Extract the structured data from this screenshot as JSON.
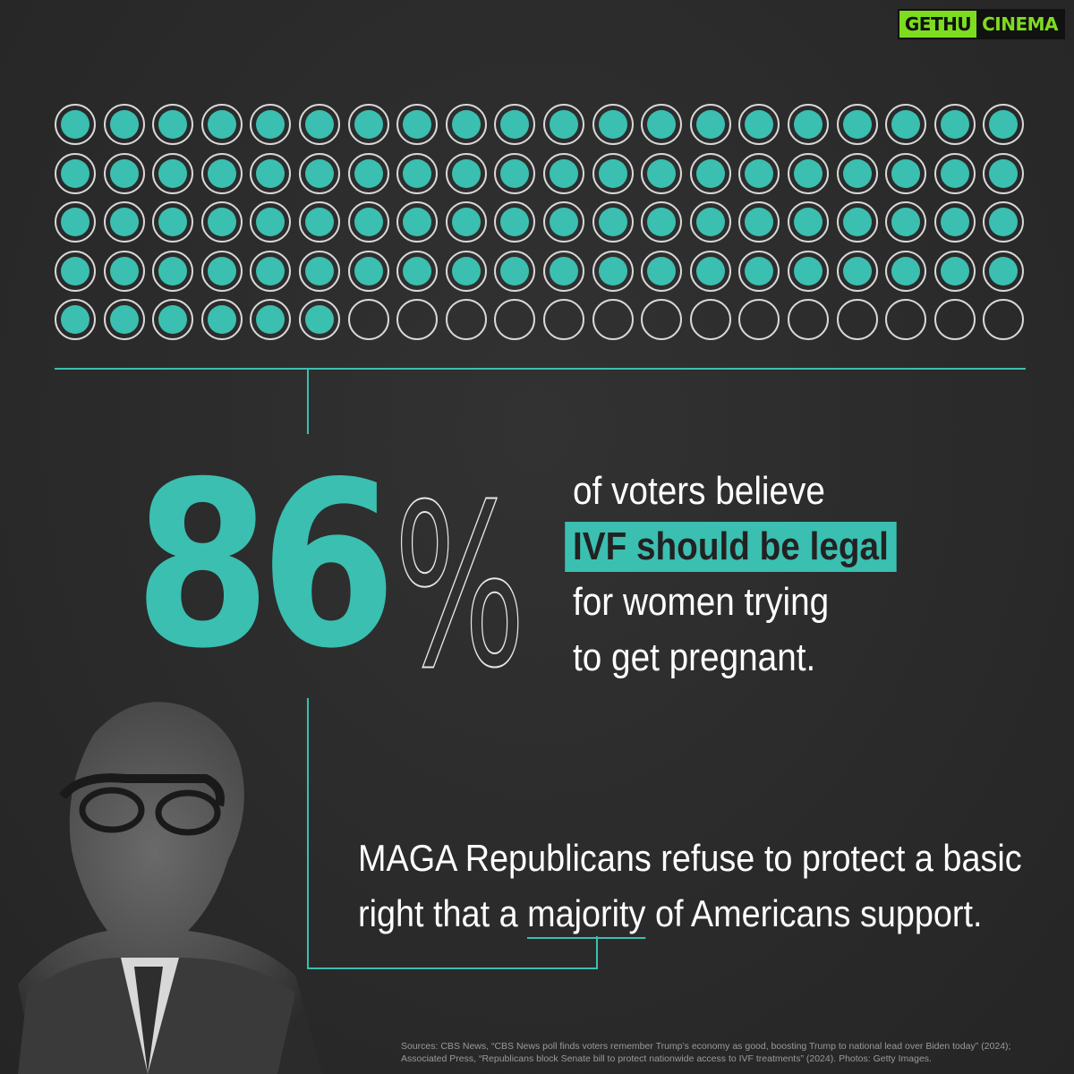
{
  "watermark": {
    "part_a": "GETHU",
    "part_b": "CINEMA"
  },
  "dot_grid": {
    "total": 100,
    "filled": 86,
    "columns": 20,
    "fill_color": "#3bbfb1"
  },
  "stat": {
    "number": "86",
    "percent_sign": "%",
    "lines": [
      "of voters believe",
      "IVF should be legal",
      "for women trying",
      "to get pregnant."
    ],
    "highlight_line_index": 1
  },
  "claim": {
    "line1": "MAGA Republicans refuse to protect a basic",
    "line2_before": "right that a ",
    "line2_underlined": "majority",
    "line2_after": " of Americans support."
  },
  "sources": {
    "line1": "Sources: CBS News, “CBS News poll finds voters remember Trump’s economy as good, boosting Trump to national lead over Biden today” (2024);",
    "line2": "Associated Press, “Republicans block Senate bill to protect nationwide access to IVF treatments” (2024). Photos: Getty Images."
  },
  "colors": {
    "accent": "#3bbfb1",
    "background": "#2b2b2b",
    "text": "#ffffff"
  },
  "icons": {
    "watermark_logo": "gethucinema-logo"
  }
}
